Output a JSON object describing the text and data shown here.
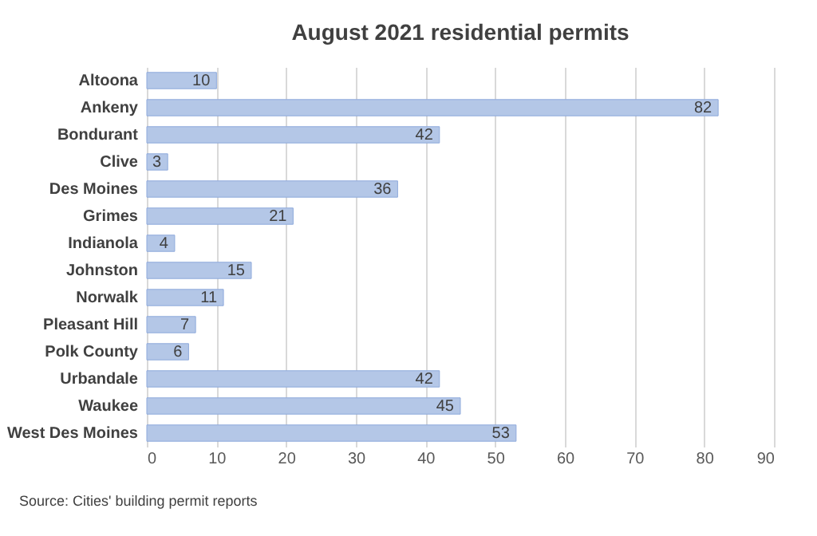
{
  "chart_data": {
    "type": "bar",
    "orientation": "horizontal",
    "title": "August 2021 residential permits",
    "categories": [
      "Altoona",
      "Ankeny",
      "Bondurant",
      "Clive",
      "Des Moines",
      "Grimes",
      "Indianola",
      "Johnston",
      "Norwalk",
      "Pleasant Hill",
      "Polk County",
      "Urbandale",
      "Waukee",
      "West Des Moines"
    ],
    "values": [
      10,
      82,
      42,
      3,
      36,
      21,
      4,
      15,
      11,
      7,
      6,
      42,
      45,
      53
    ],
    "color": "#b4c7e7",
    "xlim": [
      0,
      90
    ],
    "xticks": [
      0,
      10,
      20,
      30,
      40,
      50,
      60,
      70,
      80,
      90
    ],
    "grid": "x",
    "data_labels": true,
    "annotations": [
      "Source: Cities' building permit reports"
    ]
  }
}
